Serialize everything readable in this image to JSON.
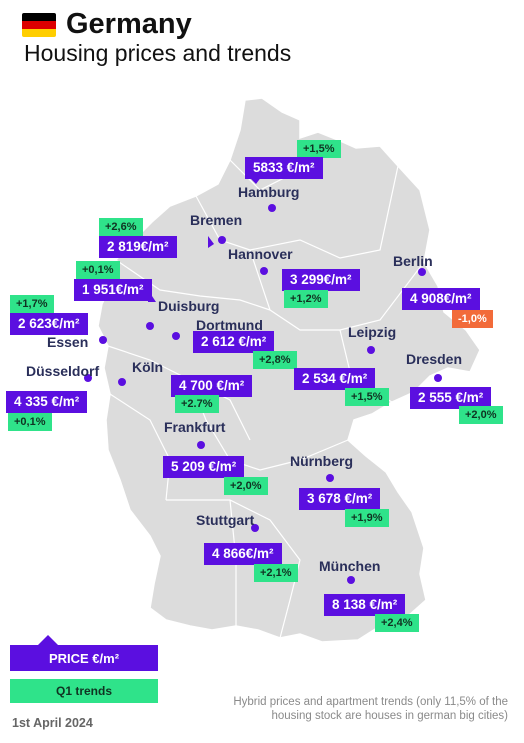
{
  "header": {
    "title": "Germany",
    "subtitle": "Housing prices and trends"
  },
  "colors": {
    "price_box": "#5b0fe0",
    "trend_positive": "#2fe38a",
    "trend_negative": "#f26b3a",
    "map_fill": "#dcdcdc",
    "city_label": "#2a2f5a"
  },
  "cities": {
    "hamburg": {
      "name": "Hamburg",
      "price": "5833 €/m²",
      "trend": "+1,5%"
    },
    "bremen": {
      "name": "Bremen",
      "price": "2 819€/m²",
      "trend": "+2,6%"
    },
    "hannover": {
      "name": "Hannover",
      "price": "3 299€/m²",
      "trend": "+1,2%"
    },
    "berlin": {
      "name": "Berlin",
      "price": "4 908€/m²",
      "trend": "-1,0%"
    },
    "duisburg": {
      "name": "Duisburg",
      "price": "1 951€/m²",
      "trend": "+0,1%"
    },
    "essen": {
      "name": "Essen",
      "price": "2 623€/m²",
      "trend": "+1,7%"
    },
    "dortmund": {
      "name": "Dortmund",
      "price": "2 612 €/m²",
      "trend": "+2,8%"
    },
    "leipzig": {
      "name": "Leipzig",
      "price": "2 534 €/m²",
      "trend": "+1,5%"
    },
    "dresden": {
      "name": "Dresden",
      "price": "2 555 €/m²",
      "trend": "+2,0%"
    },
    "dusseldorf": {
      "name": "Düsseldorf",
      "price": "4 335 €/m²",
      "trend": "+0,1%"
    },
    "koln": {
      "name": "Köln",
      "price": "4 700 €/m²",
      "trend": "+2.7%"
    },
    "frankfurt": {
      "name": "Frankfurt",
      "price": "5 209 €/m²",
      "trend": "+2,0%"
    },
    "nurnberg": {
      "name": "Nürnberg",
      "price": "3 678 €/m²",
      "trend": "+1,9%"
    },
    "stuttgart": {
      "name": "Stuttgart",
      "price": "4 866€/m²",
      "trend": "+2,1%"
    },
    "munchen": {
      "name": "München",
      "price": "8 138 €/m²",
      "trend": "+2,4%"
    }
  },
  "legend": {
    "price_label": "PRICE €/m²",
    "trend_label": "Q1 trends"
  },
  "footer": {
    "date": "1st April 2024",
    "note": "Hybrid prices and apartment trends (only 11,5% of the housing stock are houses in german big cities)"
  }
}
